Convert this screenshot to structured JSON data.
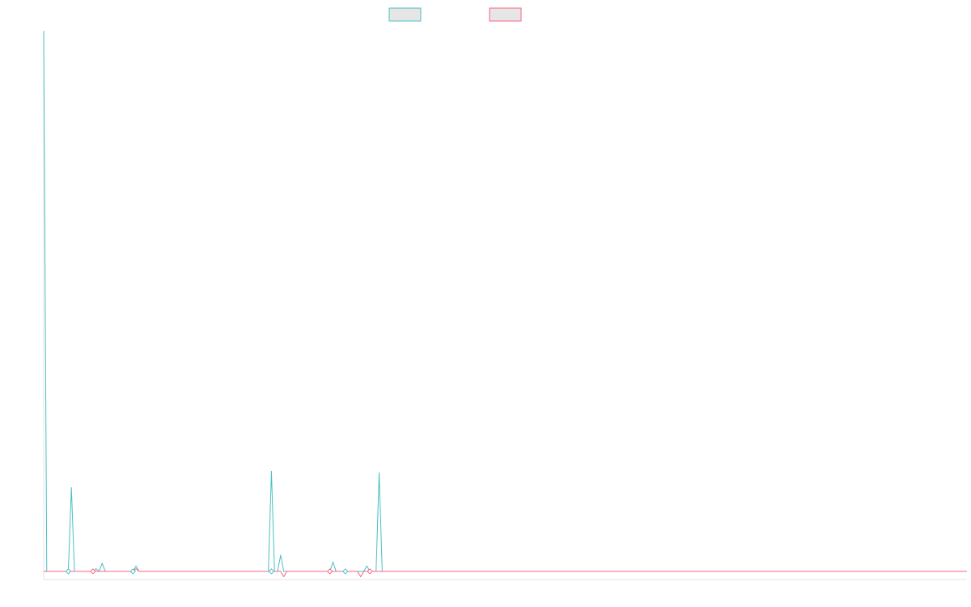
{
  "colors": {
    "teal": "#4bc0c0",
    "pink": "#ff6384",
    "legend_fill": "#e6e6e6",
    "axis": "#e5e5e5",
    "background": "#ffffff"
  },
  "chart_data": {
    "type": "line",
    "title": "",
    "xlabel": "",
    "ylabel": "",
    "grid": false,
    "legend_position": "top",
    "x": [
      0,
      1,
      2,
      3,
      4,
      5,
      6,
      7,
      8,
      9,
      10,
      11,
      12,
      13,
      14,
      15,
      16,
      17,
      18,
      19,
      20,
      21,
      22,
      23,
      24,
      25,
      26,
      27,
      28,
      29,
      30,
      31,
      32,
      33,
      34,
      35,
      36,
      37,
      38,
      39,
      40,
      41,
      42,
      43,
      44,
      45,
      46,
      47,
      48,
      49,
      50,
      51,
      52,
      53,
      54,
      55,
      56,
      57,
      58,
      59,
      60,
      61,
      62,
      63,
      64,
      65,
      66,
      67,
      68,
      69,
      70,
      71,
      72,
      73,
      74,
      75,
      76,
      77,
      78,
      79,
      80,
      81,
      82,
      83,
      84,
      85,
      86,
      87,
      88,
      89,
      90,
      91,
      92,
      93,
      94,
      95,
      96,
      97,
      98,
      99,
      100,
      101,
      102,
      103,
      104,
      105,
      106,
      107,
      108,
      109,
      110,
      111,
      112,
      113,
      114,
      115,
      116,
      117,
      118,
      119,
      120,
      121,
      122,
      123,
      124,
      125,
      126,
      127,
      128,
      129,
      130,
      131,
      132,
      133,
      134,
      135,
      136,
      137,
      138,
      139,
      140,
      141,
      142,
      143,
      144,
      145,
      146,
      147,
      148,
      149,
      150,
      151,
      152,
      153,
      154,
      155,
      156,
      157,
      158,
      159,
      160,
      161,
      162,
      163,
      164,
      165,
      166,
      167,
      168,
      169,
      170,
      171,
      172,
      173,
      174,
      175,
      176,
      177,
      178,
      179,
      180,
      181,
      182,
      183,
      184,
      185,
      186,
      187,
      188,
      189,
      190,
      191,
      192,
      193,
      194,
      195,
      196,
      197,
      198,
      199,
      200,
      201,
      202,
      203,
      204,
      205,
      206,
      207,
      208,
      209,
      210,
      211,
      212,
      213,
      214,
      215,
      216,
      217,
      218,
      219,
      220,
      221,
      222,
      223,
      224,
      225,
      226,
      227,
      228,
      229,
      230,
      231,
      232,
      233,
      234,
      235,
      236,
      237,
      238,
      239,
      240,
      241,
      242,
      243,
      244,
      245,
      246,
      247,
      248,
      249,
      250,
      251,
      252,
      253,
      254,
      255,
      256,
      257,
      258,
      259,
      260,
      261,
      262,
      263,
      264,
      265,
      266,
      267,
      268,
      269,
      270,
      271,
      272,
      273,
      274,
      275,
      276,
      277,
      278,
      279,
      280,
      281,
      282,
      283,
      284,
      285,
      286,
      287,
      288,
      289,
      290,
      291,
      292,
      293,
      294,
      295,
      296,
      297,
      298,
      299,
      300
    ],
    "xlim": [
      0,
      300
    ],
    "ylim": [
      -3,
      200
    ],
    "series": [
      {
        "color_key": "teal",
        "values": [
          200,
          0,
          0,
          0,
          0,
          0,
          0,
          0,
          0,
          31,
          0,
          0,
          0,
          0,
          0,
          0,
          0,
          1,
          0,
          3,
          0,
          0,
          0,
          0,
          0,
          0,
          0,
          0,
          0,
          0,
          2,
          0,
          0,
          0,
          0,
          0,
          0,
          0,
          0,
          0,
          0,
          0,
          0,
          0,
          0,
          0,
          0,
          0,
          0,
          0,
          0,
          0,
          0,
          0,
          0,
          0,
          0,
          0,
          0,
          0,
          0,
          0,
          0,
          0,
          0,
          0,
          0,
          0,
          0,
          0,
          0,
          0,
          0,
          0,
          37,
          0,
          0,
          6,
          0,
          0,
          0,
          0,
          0,
          0,
          0,
          0,
          0,
          0,
          0,
          0,
          0,
          0,
          0,
          0,
          3.5,
          0,
          0,
          0,
          0,
          0,
          0,
          0,
          0,
          0,
          0,
          2,
          0,
          0,
          0,
          36.5,
          0,
          0,
          0,
          0,
          0,
          0,
          0,
          0,
          0,
          0,
          0,
          0,
          0,
          0,
          0,
          0,
          0,
          0,
          0,
          0,
          0,
          0,
          0,
          0,
          0,
          0,
          0,
          0,
          0,
          0,
          0,
          0,
          0,
          0,
          0,
          0,
          0,
          0,
          0,
          0,
          0,
          0,
          0,
          0,
          0,
          0,
          0,
          0,
          0,
          0,
          0,
          0,
          0,
          0,
          0,
          0,
          0,
          0,
          0,
          0,
          0,
          0,
          0,
          0,
          0,
          0,
          0,
          0,
          0,
          0,
          0,
          0,
          0,
          0,
          0,
          0,
          0,
          0,
          0,
          0,
          0,
          0,
          0,
          0,
          0,
          0,
          0,
          0,
          0,
          0,
          0,
          0,
          0,
          0,
          0,
          0,
          0,
          0,
          0,
          0,
          0,
          0,
          0,
          0,
          0,
          0,
          0,
          0,
          0,
          0,
          0,
          0,
          0,
          0,
          0,
          0,
          0,
          0,
          0,
          0,
          0,
          0,
          0,
          0,
          0,
          0,
          0,
          0,
          0,
          0,
          0,
          0,
          0,
          0,
          0,
          0,
          0,
          0,
          0,
          0,
          0,
          0,
          0,
          0,
          0,
          0,
          0,
          0,
          0,
          0,
          0,
          0,
          0,
          0,
          0,
          0,
          0,
          0,
          0,
          0,
          0,
          0,
          0,
          0,
          0,
          0,
          0,
          0,
          0,
          0,
          0,
          0,
          0,
          0,
          0,
          0,
          0,
          0,
          0,
          0,
          0,
          0,
          0,
          0,
          0,
          0,
          0,
          0,
          0,
          0,
          0
        ]
      },
      {
        "color_key": "pink",
        "values": [
          0,
          0,
          0,
          0,
          0,
          0,
          0,
          0,
          0,
          0,
          0,
          0,
          0,
          0,
          0,
          0,
          0,
          0,
          0,
          0,
          0,
          0,
          0,
          0,
          0,
          0,
          0,
          0,
          0,
          0,
          1,
          0,
          0,
          0,
          0,
          0,
          0,
          0,
          0,
          0,
          0,
          0,
          0,
          0,
          0,
          0,
          0,
          0,
          0,
          0,
          0,
          0,
          0,
          0,
          0,
          0,
          0,
          0,
          0,
          0,
          0,
          0,
          0,
          0,
          0,
          0,
          0,
          0,
          0,
          0,
          0,
          0,
          0,
          0,
          0,
          0,
          0,
          0,
          -2,
          0,
          0,
          0,
          0,
          0,
          0,
          0,
          0,
          0,
          0,
          0,
          0,
          0,
          0,
          0,
          0,
          0,
          0,
          0,
          0,
          0,
          0,
          0,
          0,
          -2,
          0,
          0,
          0,
          0,
          0,
          0,
          0,
          0,
          0,
          0,
          0,
          0,
          0,
          0,
          0,
          0,
          0,
          0,
          0,
          0,
          0,
          0,
          0,
          0,
          0,
          0,
          0,
          0,
          0,
          0,
          0,
          0,
          0,
          0,
          0,
          0,
          0,
          0,
          0,
          0,
          0,
          0,
          0,
          0,
          0,
          0,
          0,
          0,
          0,
          0,
          0,
          0,
          0,
          0,
          0,
          0,
          0,
          0,
          0,
          0,
          0,
          0,
          0,
          0,
          0,
          0,
          0,
          0,
          0,
          0,
          0,
          0,
          0,
          0,
          0,
          0,
          0,
          0,
          0,
          0,
          0,
          0,
          0,
          0,
          0,
          0,
          0,
          0,
          0,
          0,
          0,
          0,
          0,
          0,
          0,
          0,
          0,
          0,
          0,
          0,
          0,
          0,
          0,
          0,
          0,
          0,
          0,
          0,
          0,
          0,
          0,
          0,
          0,
          0,
          0,
          0,
          0,
          0,
          0,
          0,
          0,
          0,
          0,
          0,
          0,
          0,
          0,
          0,
          0,
          0,
          0,
          0,
          0,
          0,
          0,
          0,
          0,
          0,
          0,
          0,
          0,
          0,
          0,
          0,
          0,
          0,
          0,
          0,
          0,
          0,
          0,
          0,
          0,
          0,
          0,
          0,
          0,
          0,
          0,
          0,
          0,
          0,
          0,
          0,
          0,
          0,
          0,
          0,
          0,
          0,
          0,
          0,
          0,
          0,
          0,
          0,
          0,
          0,
          0,
          0,
          0,
          0,
          0,
          0,
          0,
          0,
          0,
          0,
          0,
          0,
          0,
          0,
          0,
          0,
          0,
          0,
          0
        ]
      }
    ],
    "markers": [
      {
        "series": "teal",
        "x": 8,
        "y": 0
      },
      {
        "series": "pink",
        "x": 16,
        "y": 0
      },
      {
        "series": "teal",
        "x": 29,
        "y": 0
      },
      {
        "series": "teal",
        "x": 74,
        "y": 0
      },
      {
        "series": "pink",
        "x": 93,
        "y": 0
      },
      {
        "series": "teal",
        "x": 98,
        "y": 0
      },
      {
        "series": "pink",
        "x": 106,
        "y": 0
      }
    ]
  }
}
